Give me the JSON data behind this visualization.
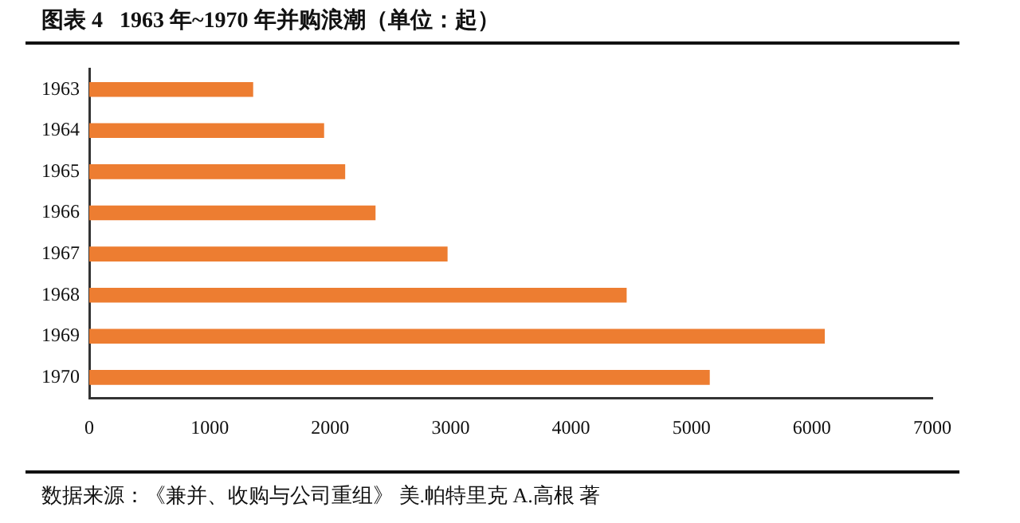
{
  "chart_data": {
    "type": "bar",
    "orientation": "horizontal",
    "title": "图表 4   1963 年~1970 年并购浪潮（单位：起）",
    "categories": [
      "1963",
      "1964",
      "1965",
      "1966",
      "1967",
      "1968",
      "1969",
      "1970"
    ],
    "values": [
      1361,
      1950,
      2125,
      2377,
      2975,
      4462,
      6107,
      5152
    ],
    "color": "#ed7d31",
    "xlim": [
      0,
      7000
    ],
    "xticks": [
      0,
      1000,
      2000,
      3000,
      4000,
      5000,
      6000,
      7000
    ],
    "grid": false,
    "legend": false,
    "annotations": [
      "数据来源：《兼并、收购与公司重组》 美.帕特里克 A.高根 著"
    ]
  }
}
